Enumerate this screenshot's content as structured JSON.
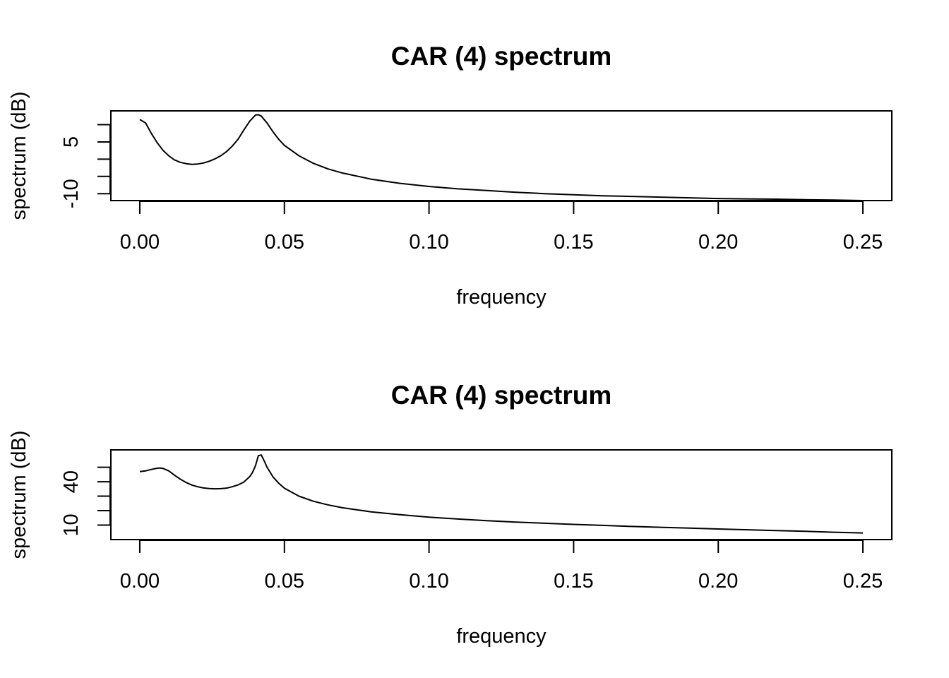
{
  "chart_data": [
    {
      "type": "line",
      "title": "CAR (4) spectrum",
      "xlabel": "frequency",
      "ylabel": "spectrum (dB)",
      "xlim": [
        -0.01,
        0.26
      ],
      "ylim": [
        -12,
        14
      ],
      "x_ticks": [
        0.0,
        0.05,
        0.1,
        0.15,
        0.2,
        0.25
      ],
      "x_tick_labels": [
        "0.00",
        "0.05",
        "0.10",
        "0.15",
        "0.20",
        "0.25"
      ],
      "y_ticks": [
        -10,
        -5,
        0,
        5,
        10
      ],
      "y_tick_labels": [
        "-10",
        "",
        "",
        "5",
        ""
      ],
      "grid": false,
      "series": [
        {
          "x": [
            0.0,
            0.002,
            0.004,
            0.006,
            0.008,
            0.01,
            0.012,
            0.014,
            0.016,
            0.018,
            0.02,
            0.022,
            0.024,
            0.026,
            0.028,
            0.03,
            0.032,
            0.034,
            0.036,
            0.038,
            0.04,
            0.041,
            0.042,
            0.044,
            0.046,
            0.048,
            0.05,
            0.055,
            0.06,
            0.065,
            0.07,
            0.08,
            0.09,
            0.1,
            0.11,
            0.12,
            0.13,
            0.14,
            0.15,
            0.16,
            0.17,
            0.18,
            0.19,
            0.2,
            0.21,
            0.22,
            0.23,
            0.24,
            0.25
          ],
          "y": [
            11.5,
            10.5,
            7.5,
            4.8,
            2.6,
            1.0,
            -0.2,
            -0.9,
            -1.3,
            -1.5,
            -1.4,
            -1.1,
            -0.6,
            0.1,
            1.0,
            2.2,
            3.8,
            5.8,
            8.5,
            11.0,
            12.8,
            12.9,
            12.5,
            10.5,
            8.0,
            5.8,
            4.0,
            1.0,
            -1.2,
            -2.8,
            -4.0,
            -5.8,
            -7.0,
            -7.9,
            -8.6,
            -9.1,
            -9.6,
            -10.0,
            -10.3,
            -10.6,
            -10.8,
            -11.0,
            -11.2,
            -11.4,
            -11.5,
            -11.6,
            -11.75,
            -11.85,
            -12.0
          ]
        }
      ]
    },
    {
      "type": "line",
      "title": "CAR (4) spectrum",
      "xlabel": "frequency",
      "ylabel": "spectrum (dB)",
      "xlim": [
        -0.01,
        0.26
      ],
      "ylim": [
        0,
        62
      ],
      "x_ticks": [
        0.0,
        0.05,
        0.1,
        0.15,
        0.2,
        0.25
      ],
      "x_tick_labels": [
        "0.00",
        "0.05",
        "0.10",
        "0.15",
        "0.20",
        "0.25"
      ],
      "y_ticks": [
        10,
        20,
        30,
        40,
        50
      ],
      "y_tick_labels": [
        "10",
        "",
        "",
        "40",
        ""
      ],
      "grid": false,
      "series": [
        {
          "x": [
            0.0,
            0.002,
            0.004,
            0.006,
            0.007,
            0.008,
            0.01,
            0.012,
            0.014,
            0.016,
            0.018,
            0.02,
            0.022,
            0.024,
            0.026,
            0.028,
            0.03,
            0.032,
            0.034,
            0.036,
            0.038,
            0.039,
            0.04,
            0.041,
            0.042,
            0.043,
            0.044,
            0.046,
            0.048,
            0.05,
            0.055,
            0.06,
            0.065,
            0.07,
            0.08,
            0.09,
            0.1,
            0.11,
            0.12,
            0.13,
            0.14,
            0.15,
            0.16,
            0.17,
            0.18,
            0.19,
            0.2,
            0.21,
            0.22,
            0.23,
            0.24,
            0.25
          ],
          "y": [
            47.0,
            47.5,
            48.5,
            49.3,
            49.5,
            49.2,
            47.5,
            44.5,
            41.8,
            39.5,
            37.7,
            36.5,
            35.7,
            35.3,
            35.1,
            35.2,
            35.6,
            36.5,
            37.8,
            39.8,
            43.5,
            46.5,
            51.0,
            58.0,
            58.5,
            54.5,
            50.0,
            43.5,
            39.0,
            35.5,
            30.0,
            26.5,
            24.0,
            22.0,
            19.2,
            17.2,
            15.5,
            14.2,
            13.1,
            12.1,
            11.3,
            10.5,
            9.8,
            9.1,
            8.5,
            7.9,
            7.3,
            6.8,
            6.2,
            5.7,
            5.1,
            4.6
          ]
        }
      ]
    }
  ]
}
